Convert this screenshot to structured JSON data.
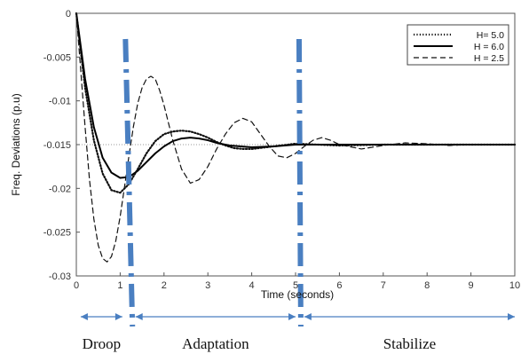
{
  "chart_data": {
    "type": "line",
    "title": "",
    "xlabel": "Time (seconds)",
    "ylabel": "Freq. Deviations (p.u)",
    "xlim": [
      0,
      10
    ],
    "ylim": [
      -0.03,
      0
    ],
    "x_ticks": [
      0,
      1,
      2,
      3,
      4,
      5,
      6,
      7,
      8,
      9,
      10
    ],
    "y_ticks": [
      0,
      -0.005,
      -0.01,
      -0.015,
      -0.02,
      -0.025,
      -0.03
    ],
    "x_tick_labels": [
      "0",
      "1",
      "2",
      "3",
      "4",
      "5",
      "6",
      "7",
      "8",
      "9",
      "10"
    ],
    "y_tick_labels": [
      "0",
      "-0.005",
      "-0.01",
      "-0.015",
      "-0.02",
      "-0.025",
      "-0.03"
    ],
    "legend_position": "top-right",
    "grid": false,
    "reference_line": {
      "y": -0.015,
      "style": "dotted",
      "color": "#999999"
    },
    "series": [
      {
        "name": "H= 5.0",
        "style": "dotted",
        "color": "#111111",
        "x": [
          0,
          0.2,
          0.4,
          0.6,
          0.8,
          1.0,
          1.2,
          1.4,
          1.6,
          1.8,
          2.0,
          2.2,
          2.4,
          2.6,
          2.8,
          3.0,
          3.2,
          3.4,
          3.6,
          3.8,
          4.0,
          4.5,
          5.0,
          5.5,
          6.0,
          7.0,
          8.0,
          10.0
        ],
        "y": [
          0,
          -0.0085,
          -0.0145,
          -0.0183,
          -0.0202,
          -0.0205,
          -0.0195,
          -0.0178,
          -0.016,
          -0.0146,
          -0.0138,
          -0.0135,
          -0.0134,
          -0.0135,
          -0.0138,
          -0.0142,
          -0.0147,
          -0.0151,
          -0.0154,
          -0.0155,
          -0.0155,
          -0.0152,
          -0.0149,
          -0.015,
          -0.0151,
          -0.015,
          -0.015,
          -0.015
        ]
      },
      {
        "name": "H = 6.0",
        "style": "solid",
        "color": "#000000",
        "x": [
          0,
          0.2,
          0.4,
          0.6,
          0.8,
          1.0,
          1.2,
          1.4,
          1.6,
          1.8,
          2.0,
          2.2,
          2.4,
          2.6,
          2.8,
          3.0,
          3.2,
          3.5,
          4.0,
          4.5,
          5.0,
          5.5,
          6.0,
          7.0,
          8.0,
          10.0
        ],
        "y": [
          0,
          -0.0075,
          -0.013,
          -0.0165,
          -0.0182,
          -0.0188,
          -0.0187,
          -0.018,
          -0.017,
          -0.016,
          -0.0152,
          -0.0146,
          -0.0143,
          -0.0142,
          -0.0143,
          -0.0145,
          -0.0148,
          -0.0151,
          -0.0153,
          -0.0152,
          -0.015,
          -0.015,
          -0.015,
          -0.015,
          -0.015,
          -0.015
        ]
      },
      {
        "name": "H = 2.5",
        "style": "dashed",
        "color": "#111111",
        "x": [
          0,
          0.1,
          0.2,
          0.3,
          0.4,
          0.5,
          0.6,
          0.7,
          0.8,
          0.9,
          1.0,
          1.1,
          1.2,
          1.3,
          1.4,
          1.5,
          1.6,
          1.7,
          1.8,
          1.9,
          2.0,
          2.2,
          2.4,
          2.6,
          2.8,
          3.0,
          3.2,
          3.4,
          3.6,
          3.8,
          4.0,
          4.2,
          4.4,
          4.6,
          4.8,
          5.0,
          5.2,
          5.4,
          5.6,
          5.8,
          6.0,
          6.5,
          7.0,
          7.5,
          8.0,
          8.5,
          9.0,
          10.0
        ],
        "y": [
          0,
          -0.0065,
          -0.013,
          -0.019,
          -0.0235,
          -0.0265,
          -0.028,
          -0.0284,
          -0.0278,
          -0.026,
          -0.0232,
          -0.0198,
          -0.0163,
          -0.013,
          -0.0103,
          -0.0085,
          -0.0075,
          -0.0072,
          -0.0075,
          -0.0088,
          -0.0105,
          -0.0145,
          -0.0178,
          -0.0194,
          -0.019,
          -0.0175,
          -0.0155,
          -0.0138,
          -0.0125,
          -0.012,
          -0.0124,
          -0.0138,
          -0.0152,
          -0.0163,
          -0.0165,
          -0.016,
          -0.0152,
          -0.0145,
          -0.0142,
          -0.0145,
          -0.015,
          -0.0155,
          -0.0151,
          -0.0148,
          -0.0149,
          -0.0151,
          -0.015,
          -0.015
        ]
      }
    ],
    "phase_dividers": [
      {
        "x_start": 1.12,
        "x_end": 1.28
      },
      {
        "x_start": 5.08,
        "x_end": 5.12
      }
    ],
    "phase_divider_color": "#4a7fc1",
    "phases": [
      {
        "label": "Droop",
        "from": 0.1,
        "to": 1.05
      },
      {
        "label": "Adaptation",
        "from": 1.35,
        "to": 5.0
      },
      {
        "label": "Stabilize",
        "from": 5.2,
        "to": 10.0
      }
    ]
  }
}
